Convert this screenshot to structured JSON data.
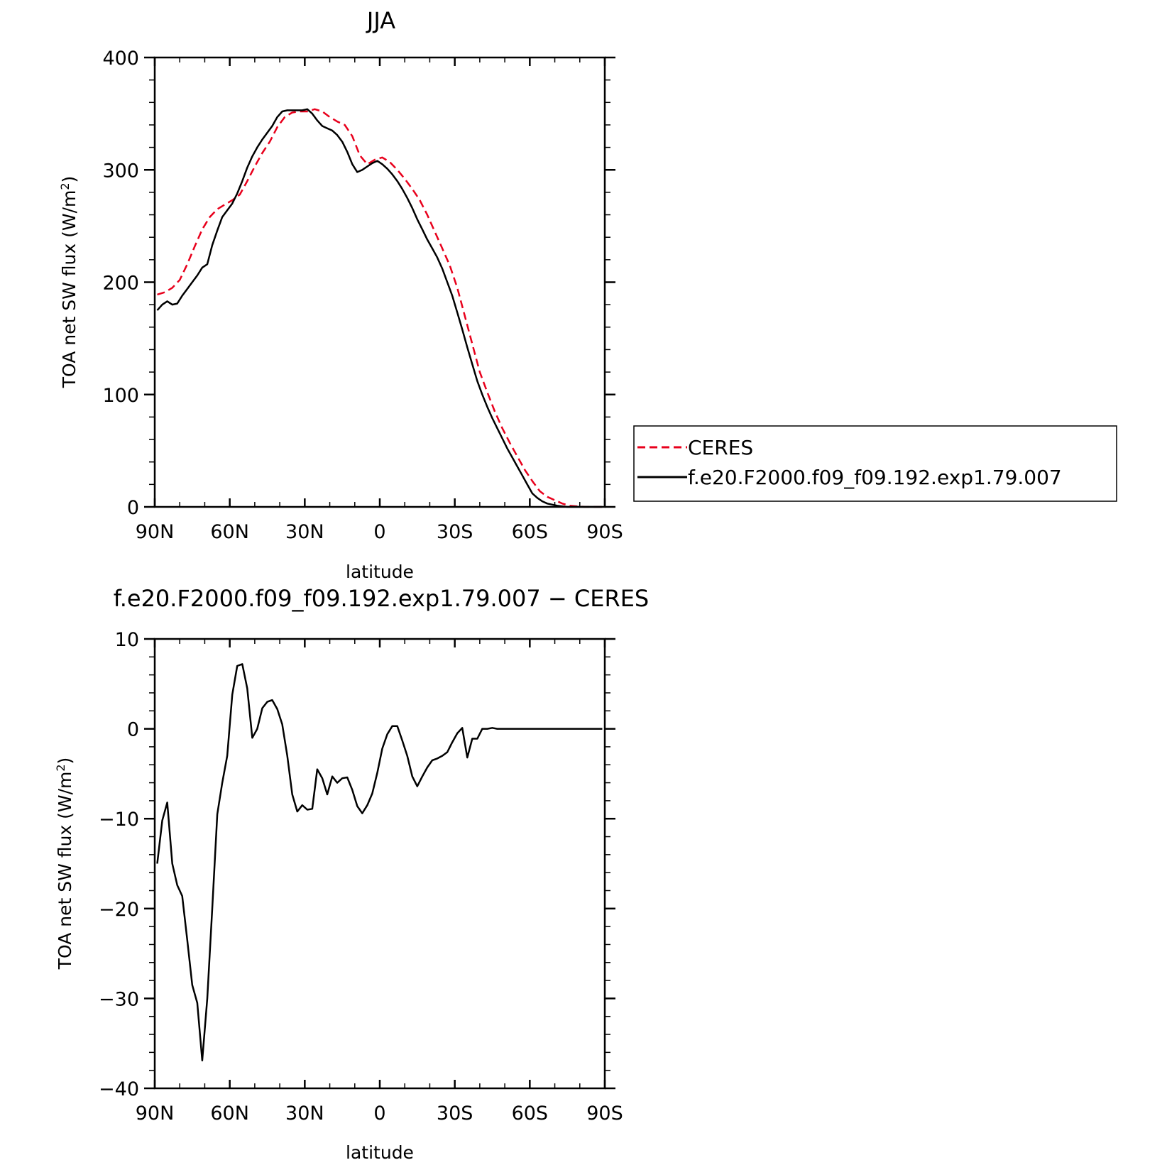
{
  "chart_data": [
    {
      "type": "line",
      "title": "JJA",
      "xlabel": "latitude",
      "ylabel": "TOA net SW flux (W/m",
      "ylabel_sup": "2",
      "ylabel_end": ")",
      "xlim": [
        90,
        -90
      ],
      "ylim": [
        0,
        400
      ],
      "x_ticks": [
        90,
        60,
        30,
        0,
        -30,
        -60,
        -90
      ],
      "x_tick_labels": [
        "90N",
        "60N",
        "30N",
        "0",
        "30S",
        "60S",
        "90S"
      ],
      "y_ticks": [
        0,
        100,
        200,
        300,
        400
      ],
      "y_tick_labels": [
        "0",
        "100",
        "200",
        "300",
        "400"
      ],
      "legend_position": "right",
      "series": [
        {
          "name": "CERES",
          "color": "#e8001c",
          "dash": "dashed",
          "points": [
            [
              89,
              189
            ],
            [
              86,
              191
            ],
            [
              83,
              195
            ],
            [
              80,
              202
            ],
            [
              77,
              216
            ],
            [
              74,
              232
            ],
            [
              71,
              247
            ],
            [
              68,
              258
            ],
            [
              65,
              265
            ],
            [
              62,
              269
            ],
            [
              59,
              273
            ],
            [
              56,
              278
            ],
            [
              53,
              290
            ],
            [
              50,
              303
            ],
            [
              47,
              315
            ],
            [
              44,
              325
            ],
            [
              41,
              338
            ],
            [
              38,
              347
            ],
            [
              35,
              351
            ],
            [
              32,
              352
            ],
            [
              29,
              352
            ],
            [
              26,
              354
            ],
            [
              23,
              352
            ],
            [
              20,
              347
            ],
            [
              17,
              343
            ],
            [
              14,
              340
            ],
            [
              11,
              330
            ],
            [
              8,
              313
            ],
            [
              5,
              305
            ],
            [
              2,
              309
            ],
            [
              -1,
              311
            ],
            [
              -4,
              307
            ],
            [
              -7,
              300
            ],
            [
              -10,
              292
            ],
            [
              -13,
              283
            ],
            [
              -16,
              273
            ],
            [
              -19,
              260
            ],
            [
              -22,
              245
            ],
            [
              -25,
              230
            ],
            [
              -28,
              215
            ],
            [
              -31,
              195
            ],
            [
              -34,
              170
            ],
            [
              -37,
              145
            ],
            [
              -40,
              120
            ],
            [
              -43,
              102
            ],
            [
              -46,
              85
            ],
            [
              -49,
              70
            ],
            [
              -52,
              57
            ],
            [
              -55,
              45
            ],
            [
              -58,
              33
            ],
            [
              -61,
              23
            ],
            [
              -64,
              14
            ],
            [
              -67,
              9
            ],
            [
              -70,
              6
            ],
            [
              -73,
              3
            ],
            [
              -76,
              1
            ],
            [
              -79,
              0.5
            ],
            [
              -82,
              0
            ],
            [
              -85,
              0
            ],
            [
              -88,
              0
            ],
            [
              -89,
              0
            ]
          ]
        },
        {
          "name": "f.e20.F2000.f09_f09.192.exp1.79.007",
          "color": "#000000",
          "dash": "solid",
          "points": [
            [
              89,
              175
            ],
            [
              87,
              180
            ],
            [
              85,
              183
            ],
            [
              83,
              180
            ],
            [
              81,
              181
            ],
            [
              79,
              188
            ],
            [
              77,
              194
            ],
            [
              75,
              200
            ],
            [
              73,
              206
            ],
            [
              71,
              213
            ],
            [
              69,
              216
            ],
            [
              67,
              233
            ],
            [
              65,
              246
            ],
            [
              63,
              258
            ],
            [
              61,
              264
            ],
            [
              59,
              270
            ],
            [
              57,
              279
            ],
            [
              55,
              290
            ],
            [
              53,
              302
            ],
            [
              51,
              312
            ],
            [
              49,
              320
            ],
            [
              47,
              327
            ],
            [
              45,
              333
            ],
            [
              43,
              339
            ],
            [
              41,
              347
            ],
            [
              39,
              352
            ],
            [
              37,
              353
            ],
            [
              35,
              353
            ],
            [
              33,
              353
            ],
            [
              31,
              353
            ],
            [
              29,
              354
            ],
            [
              27,
              350
            ],
            [
              25,
              344
            ],
            [
              23,
              339
            ],
            [
              21,
              337
            ],
            [
              19,
              335
            ],
            [
              17,
              331
            ],
            [
              15,
              325
            ],
            [
              13,
              316
            ],
            [
              11,
              305
            ],
            [
              9,
              298
            ],
            [
              7,
              300
            ],
            [
              5,
              303
            ],
            [
              3,
              306
            ],
            [
              1,
              308
            ],
            [
              -1,
              305
            ],
            [
              -3,
              301
            ],
            [
              -5,
              296
            ],
            [
              -7,
              290
            ],
            [
              -9,
              283
            ],
            [
              -11,
              275
            ],
            [
              -13,
              266
            ],
            [
              -15,
              256
            ],
            [
              -17,
              247
            ],
            [
              -19,
              238
            ],
            [
              -21,
              230
            ],
            [
              -23,
              222
            ],
            [
              -25,
              212
            ],
            [
              -27,
              200
            ],
            [
              -29,
              188
            ],
            [
              -31,
              173
            ],
            [
              -33,
              158
            ],
            [
              -35,
              142
            ],
            [
              -37,
              127
            ],
            [
              -39,
              112
            ],
            [
              -41,
              100
            ],
            [
              -43,
              89
            ],
            [
              -45,
              79
            ],
            [
              -47,
              70
            ],
            [
              -49,
              61
            ],
            [
              -51,
              52
            ],
            [
              -53,
              44
            ],
            [
              -55,
              36
            ],
            [
              -57,
              28
            ],
            [
              -59,
              20
            ],
            [
              -61,
              12
            ],
            [
              -63,
              8
            ],
            [
              -65,
              5
            ],
            [
              -67,
              3
            ],
            [
              -69,
              2
            ],
            [
              -71,
              1
            ],
            [
              -73,
              0.5
            ],
            [
              -75,
              0
            ],
            [
              -77,
              0
            ],
            [
              -79,
              0
            ],
            [
              -81,
              0
            ],
            [
              -83,
              0
            ],
            [
              -85,
              0
            ],
            [
              -87,
              0
            ],
            [
              -89,
              0
            ]
          ]
        }
      ]
    },
    {
      "type": "line",
      "title": "f.e20.F2000.f09_f09.192.exp1.79.007 − CERES",
      "xlabel": "latitude",
      "ylabel": "TOA net SW flux (W/m",
      "ylabel_sup": "2",
      "ylabel_end": ")",
      "xlim": [
        90,
        -90
      ],
      "ylim": [
        -40,
        10
      ],
      "x_ticks": [
        90,
        60,
        30,
        0,
        -30,
        -60,
        -90
      ],
      "x_tick_labels": [
        "90N",
        "60N",
        "30N",
        "0",
        "30S",
        "60S",
        "90S"
      ],
      "y_ticks": [
        -40,
        -30,
        -20,
        -10,
        0,
        10
      ],
      "y_tick_labels": [
        "−40",
        "−30",
        "−20",
        "−10",
        "0",
        "10"
      ],
      "series": [
        {
          "color": "#000000",
          "dash": "solid",
          "points": [
            [
              89,
              -15
            ],
            [
              87,
              -10.2
            ],
            [
              85,
              -8.2
            ],
            [
              83,
              -15
            ],
            [
              81,
              -17.4
            ],
            [
              79,
              -18.6
            ],
            [
              77,
              -23.5
            ],
            [
              75,
              -28.5
            ],
            [
              73,
              -30.5
            ],
            [
              71,
              -36.9
            ],
            [
              69,
              -30
            ],
            [
              67,
              -20
            ],
            [
              65,
              -9.5
            ],
            [
              63,
              -6
            ],
            [
              61,
              -3
            ],
            [
              59,
              3.8
            ],
            [
              57,
              7
            ],
            [
              55,
              7.2
            ],
            [
              53,
              4.5
            ],
            [
              51,
              -1
            ],
            [
              49,
              0
            ],
            [
              47,
              2.3
            ],
            [
              45,
              3
            ],
            [
              43,
              3.2
            ],
            [
              41,
              2.2
            ],
            [
              39,
              0.5
            ],
            [
              37,
              -3
            ],
            [
              35,
              -7.3
            ],
            [
              33,
              -9.2
            ],
            [
              31,
              -8.5
            ],
            [
              29,
              -9
            ],
            [
              27,
              -8.9
            ],
            [
              25,
              -4.5
            ],
            [
              23,
              -5.5
            ],
            [
              21,
              -7.3
            ],
            [
              19,
              -5.3
            ],
            [
              17,
              -6
            ],
            [
              15,
              -5.5
            ],
            [
              13,
              -5.4
            ],
            [
              11,
              -6.8
            ],
            [
              9,
              -8.6
            ],
            [
              7,
              -9.4
            ],
            [
              5,
              -8.5
            ],
            [
              3,
              -7.2
            ],
            [
              1,
              -4.9
            ],
            [
              -1,
              -2.2
            ],
            [
              -3,
              -0.6
            ],
            [
              -5,
              0.3
            ],
            [
              -7,
              0.3
            ],
            [
              -9,
              -1.3
            ],
            [
              -11,
              -3
            ],
            [
              -13,
              -5.3
            ],
            [
              -15,
              -6.4
            ],
            [
              -17,
              -5.3
            ],
            [
              -19,
              -4.3
            ],
            [
              -21,
              -3.5
            ],
            [
              -23,
              -3.3
            ],
            [
              -25,
              -3
            ],
            [
              -27,
              -2.6
            ],
            [
              -29,
              -1.5
            ],
            [
              -31,
              -0.5
            ],
            [
              -33,
              0.1
            ],
            [
              -35,
              -3.2
            ],
            [
              -37,
              -1.1
            ],
            [
              -39,
              -1.1
            ],
            [
              -41,
              0
            ],
            [
              -43,
              0
            ],
            [
              -45,
              0.1
            ],
            [
              -47,
              0
            ],
            [
              -49,
              0
            ],
            [
              -51,
              0
            ],
            [
              -53,
              0
            ],
            [
              -55,
              0
            ],
            [
              -57,
              0
            ],
            [
              -59,
              0
            ],
            [
              -61,
              0
            ],
            [
              -63,
              0
            ],
            [
              -65,
              0
            ],
            [
              -67,
              0
            ],
            [
              -69,
              0
            ],
            [
              -71,
              0
            ],
            [
              -73,
              0
            ],
            [
              -75,
              0
            ],
            [
              -77,
              0
            ],
            [
              -79,
              0
            ],
            [
              -81,
              0
            ],
            [
              -83,
              0
            ],
            [
              -85,
              0
            ],
            [
              -87,
              0
            ],
            [
              -89,
              0
            ]
          ]
        }
      ]
    }
  ]
}
